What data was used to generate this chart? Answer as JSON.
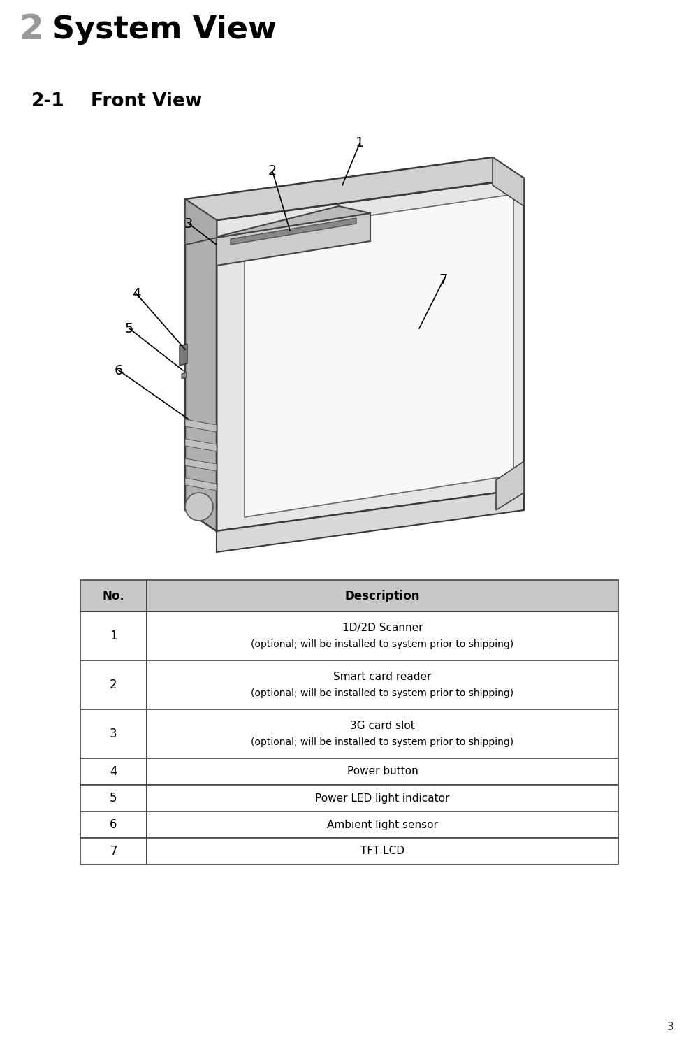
{
  "page_num": "3",
  "chapter_num": "2",
  "chapter_title": "System View",
  "section_num": "2-1",
  "section_title": "Front View",
  "header_bg": "#bebebe",
  "header_text_color": "#000000",
  "header_num_color": "#999999",
  "body_bg": "#ffffff",
  "table_header_bg": "#c8c8c8",
  "table_border_color": "#444444",
  "table_rows": [
    {
      "no": "No.",
      "desc": "Description",
      "is_header": true
    },
    {
      "no": "1",
      "line1": "1D/2D Scanner",
      "line2": "(optional; will be installed to system prior to shipping)",
      "is_header": false,
      "tall": true
    },
    {
      "no": "2",
      "line1": "Smart card reader",
      "line2": "(optional; will be installed to system prior to shipping)",
      "is_header": false,
      "tall": true
    },
    {
      "no": "3",
      "line1": "3G card slot",
      "line2": "(optional; will be installed to system prior to shipping)",
      "is_header": false,
      "tall": true
    },
    {
      "no": "4",
      "line1": "Power button",
      "line2": "",
      "is_header": false,
      "tall": false
    },
    {
      "no": "5",
      "line1": "Power LED light indicator",
      "line2": "",
      "is_header": false,
      "tall": false
    },
    {
      "no": "6",
      "line1": "Ambient light sensor",
      "line2": "",
      "is_header": false,
      "tall": false
    },
    {
      "no": "7",
      "line1": "TFT LCD",
      "line2": "",
      "is_header": false,
      "tall": false
    }
  ]
}
